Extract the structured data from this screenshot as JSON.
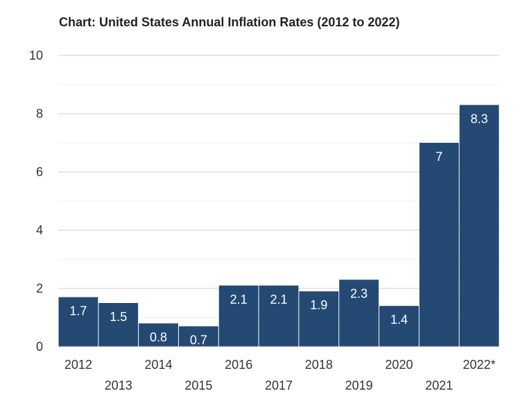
{
  "chart_data": {
    "type": "bar",
    "title": "Chart: United States Annual Inflation Rates (2012 to 2022)",
    "xlabel": "",
    "ylabel": "",
    "categories": [
      "2012",
      "2013",
      "2014",
      "2015",
      "2016",
      "2017",
      "2018",
      "2019",
      "2020",
      "2021",
      "2022*"
    ],
    "values": [
      1.7,
      1.5,
      0.8,
      0.7,
      2.1,
      2.1,
      1.9,
      2.3,
      1.4,
      7,
      8.3
    ],
    "data_labels": [
      "1.7",
      "1.5",
      "0.8",
      "0.7",
      "2.1",
      "2.1",
      "1.9",
      "2.3",
      "1.4",
      "7",
      "8.3"
    ],
    "ylim": [
      0,
      10
    ],
    "yticks": [
      "0",
      "2",
      "4",
      "6",
      "8",
      "10"
    ],
    "grid": true,
    "legend": "none",
    "bar_color": "#244a73",
    "grid_color": "#d9d9d9"
  }
}
